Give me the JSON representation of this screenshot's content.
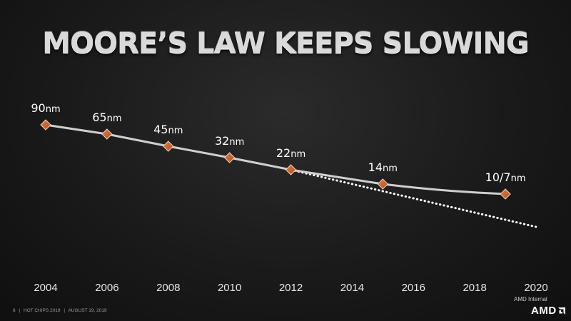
{
  "slide": {
    "title": "MOORE’S LAW KEEPS SLOWING"
  },
  "footer": {
    "page": "8",
    "sep1": "|",
    "event": "HOT CHIPS 2019",
    "sep2": "|",
    "date": "AUGUST 19, 2019",
    "classification": "AMD Internal",
    "logo_text": "AMD"
  },
  "colors": {
    "background": "#1a1a1a",
    "line": "#cfcfcf",
    "marker": "#b5511f",
    "marker_edge": "#f0d2bd",
    "trend": "#ffffff",
    "text": "#ffffff"
  },
  "chart_data": {
    "type": "line",
    "title": "MOORE’S LAW KEEPS SLOWING",
    "xlabel": "",
    "ylabel": "",
    "xlim": [
      2004,
      2020
    ],
    "x_ticks": [
      "2004",
      "2006",
      "2008",
      "2010",
      "2012",
      "2014",
      "2016",
      "2018",
      "2020"
    ],
    "grid": false,
    "series": [
      {
        "points": [
          {
            "x": 2004,
            "label": "90nm"
          },
          {
            "x": 2006,
            "label": "65nm"
          },
          {
            "x": 2008,
            "label": "45nm"
          },
          {
            "x": 2010,
            "label": "32nm"
          },
          {
            "x": 2012,
            "label": "22nm"
          },
          {
            "x": 2015,
            "label": "14nm"
          },
          {
            "x": 2019,
            "label": "10/7nm"
          }
        ],
        "style": "solid",
        "marker": "diamond"
      },
      {
        "points": [
          {
            "x": 2012
          },
          {
            "x": 2020
          }
        ],
        "style": "dotted",
        "marker": "none"
      }
    ]
  }
}
